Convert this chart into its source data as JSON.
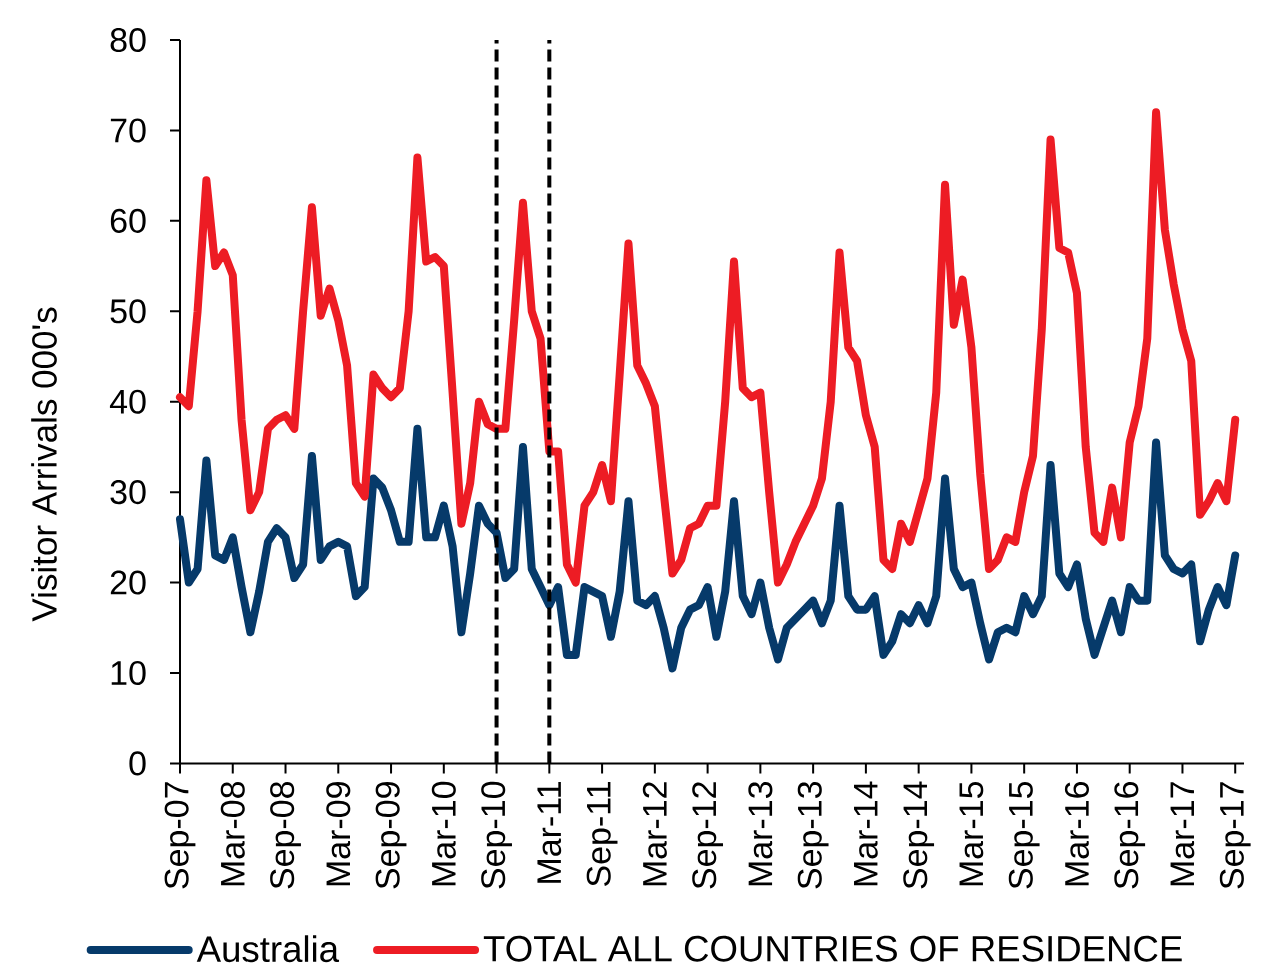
{
  "chart_data": {
    "type": "line",
    "ylabel": "Visitor Arrivals 000's",
    "x": [
      "2007-09",
      "2007-10",
      "2007-11",
      "2007-12",
      "2008-01",
      "2008-02",
      "2008-03",
      "2008-04",
      "2008-05",
      "2008-06",
      "2008-07",
      "2008-08",
      "2008-09",
      "2008-10",
      "2008-11",
      "2008-12",
      "2009-01",
      "2009-02",
      "2009-03",
      "2009-04",
      "2009-05",
      "2009-06",
      "2009-07",
      "2009-08",
      "2009-09",
      "2009-10",
      "2009-11",
      "2009-12",
      "2010-01",
      "2010-02",
      "2010-03",
      "2010-04",
      "2010-05",
      "2010-06",
      "2010-07",
      "2010-08",
      "2010-09",
      "2010-10",
      "2010-11",
      "2010-12",
      "2011-01",
      "2011-02",
      "2011-03",
      "2011-04",
      "2011-05",
      "2011-06",
      "2011-07",
      "2011-08",
      "2011-09",
      "2011-10",
      "2011-11",
      "2011-12",
      "2012-01",
      "2012-02",
      "2012-03",
      "2012-04",
      "2012-05",
      "2012-06",
      "2012-07",
      "2012-08",
      "2012-09",
      "2012-10",
      "2012-11",
      "2012-12",
      "2013-01",
      "2013-02",
      "2013-03",
      "2013-04",
      "2013-05",
      "2013-06",
      "2013-07",
      "2013-08",
      "2013-09",
      "2013-10",
      "2013-11",
      "2013-12",
      "2014-01",
      "2014-02",
      "2014-03",
      "2014-04",
      "2014-05",
      "2014-06",
      "2014-07",
      "2014-08",
      "2014-09",
      "2014-10",
      "2014-11",
      "2014-12",
      "2015-01",
      "2015-02",
      "2015-03",
      "2015-04",
      "2015-05",
      "2015-06",
      "2015-07",
      "2015-08",
      "2015-09",
      "2015-10",
      "2015-11",
      "2015-12",
      "2016-01",
      "2016-02",
      "2016-03",
      "2016-04",
      "2016-05",
      "2016-06",
      "2016-07",
      "2016-08",
      "2016-09",
      "2016-10",
      "2016-11",
      "2016-12",
      "2017-01",
      "2017-02",
      "2017-03",
      "2017-04",
      "2017-05",
      "2017-06",
      "2017-07",
      "2017-08",
      "2017-09"
    ],
    "series": [
      {
        "name": "Australia",
        "color": "#063a6a",
        "values": [
          27,
          20,
          21.5,
          33.5,
          23,
          22.5,
          25,
          19.5,
          14.5,
          19,
          24.5,
          26,
          25,
          20.5,
          22,
          34,
          22.5,
          24,
          24.5,
          24,
          18.5,
          19.5,
          31.5,
          30.5,
          28,
          24.5,
          24.5,
          37,
          25,
          25,
          28.5,
          24,
          14.5,
          21,
          28.5,
          26.5,
          25.5,
          20.5,
          21.5,
          35,
          21.5,
          19.5,
          17.5,
          19.5,
          12,
          12,
          19.5,
          19,
          18.5,
          14,
          19,
          29,
          18,
          17.5,
          18.5,
          15,
          10.5,
          15,
          17,
          17.5,
          19.5,
          14,
          19,
          29,
          18.5,
          16.5,
          20,
          15,
          11.5,
          15,
          16,
          17,
          18,
          15.5,
          18,
          28.5,
          18.5,
          17,
          17,
          18.5,
          12,
          13.5,
          16.5,
          15.5,
          17.5,
          15.5,
          18.5,
          31.5,
          21.5,
          19.5,
          20,
          15.5,
          11.5,
          14.5,
          15,
          14.5,
          18.5,
          16.5,
          18.5,
          33,
          21,
          19.5,
          22,
          16,
          12,
          15,
          18,
          14.5,
          19.5,
          18,
          18,
          35.5,
          23,
          21.5,
          21,
          22,
          13.5,
          17,
          19.5,
          17.5,
          23
        ]
      },
      {
        "name": "TOTAL ALL COUNTRIES OF RESIDENCE",
        "color": "#ed1c24",
        "values": [
          40.5,
          39.5,
          50,
          64.5,
          55,
          56.5,
          54,
          38,
          28,
          30,
          37,
          38,
          38.5,
          37,
          50,
          61.5,
          49.5,
          52.5,
          49,
          44,
          31,
          29.5,
          43,
          41.5,
          40.5,
          41.5,
          50,
          67,
          55.5,
          56,
          55,
          41,
          26.5,
          31,
          40,
          37.5,
          37,
          37,
          49,
          62,
          50,
          47,
          34.5,
          34.5,
          22,
          20,
          28.5,
          30,
          33,
          29,
          43,
          57.5,
          44,
          42,
          39.5,
          30,
          21,
          22.5,
          26,
          26.5,
          28.5,
          28.5,
          40,
          55.5,
          41.5,
          40.5,
          41,
          30,
          20,
          22,
          24.5,
          26.5,
          28.5,
          31.5,
          40,
          56.5,
          46,
          44.5,
          38.5,
          35,
          22.5,
          21.5,
          26.5,
          24.5,
          28,
          31.5,
          41,
          64,
          48.5,
          53.5,
          46,
          32,
          21.5,
          22.5,
          25,
          24.5,
          30,
          34,
          48,
          69,
          57,
          56.5,
          52,
          35,
          25.5,
          24.5,
          30.5,
          25,
          35.5,
          39.5,
          47,
          72,
          59,
          53,
          48,
          44.5,
          27.5,
          29,
          31,
          29,
          38
        ]
      }
    ],
    "xlim": [
      "2007-09-01",
      "2017-10-01"
    ],
    "xticks": [
      {
        "value": "2007-09-01",
        "label": "Sep-07"
      },
      {
        "value": "2008-03-01",
        "label": "Mar-08"
      },
      {
        "value": "2008-09-01",
        "label": "Sep-08"
      },
      {
        "value": "2009-03-01",
        "label": "Mar-09"
      },
      {
        "value": "2009-09-01",
        "label": "Sep-09"
      },
      {
        "value": "2010-03-01",
        "label": "Mar-10"
      },
      {
        "value": "2010-09-01",
        "label": "Sep-10"
      },
      {
        "value": "2011-03-01",
        "label": "Mar-11"
      },
      {
        "value": "2011-09-01",
        "label": "Sep-11"
      },
      {
        "value": "2012-03-01",
        "label": "Mar-12"
      },
      {
        "value": "2012-09-01",
        "label": "Sep-12"
      },
      {
        "value": "2013-03-01",
        "label": "Mar-13"
      },
      {
        "value": "2013-09-01",
        "label": "Sep-13"
      },
      {
        "value": "2014-03-01",
        "label": "Mar-14"
      },
      {
        "value": "2014-09-01",
        "label": "Sep-14"
      },
      {
        "value": "2015-03-01",
        "label": "Mar-15"
      },
      {
        "value": "2015-09-01",
        "label": "Sep-15"
      },
      {
        "value": "2016-03-01",
        "label": "Mar-16"
      },
      {
        "value": "2016-09-01",
        "label": "Sep-16"
      },
      {
        "value": "2017-03-01",
        "label": "Mar-17"
      },
      {
        "value": "2017-09-01",
        "label": "Sep-17"
      }
    ],
    "ylim": [
      0,
      80
    ],
    "yticks": [
      0,
      10,
      20,
      30,
      40,
      50,
      60,
      70,
      80
    ],
    "ref_lines": [
      {
        "axis": "x",
        "value": "2010-09",
        "color": "#000000",
        "line_style": "dashed"
      },
      {
        "axis": "x",
        "value": "2011-03",
        "color": "#000000",
        "line_style": "dashed"
      }
    ],
    "legend": "bottom"
  }
}
